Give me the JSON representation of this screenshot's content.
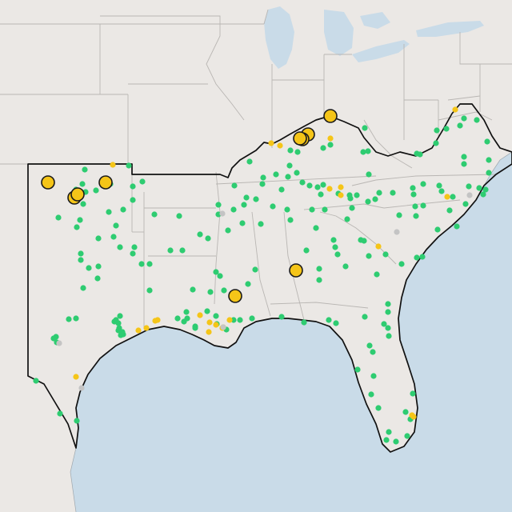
{
  "map": {
    "colors": {
      "land": "#ebe8e5",
      "water": "#c9dbe8",
      "state_border": "#b9b6b3",
      "region_outline": "#111111",
      "site_green": "#2ecc71",
      "site_yellow": "#f5c518",
      "site_gray": "#c4c4c4",
      "highlight_stroke": "#1a1a1a"
    },
    "legend": null
  }
}
